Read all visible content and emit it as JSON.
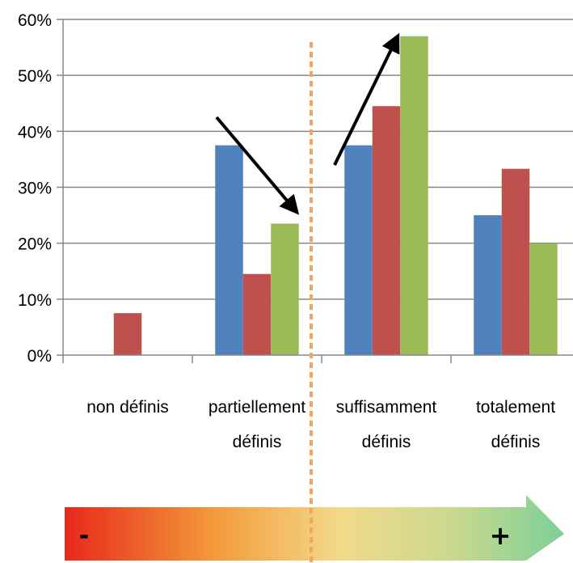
{
  "chart_data": {
    "type": "bar",
    "categories": [
      [
        "non définis"
      ],
      [
        "partiellement",
        "définis"
      ],
      [
        "suffisamment",
        "définis"
      ],
      [
        "totalement",
        "définis"
      ]
    ],
    "series": [
      {
        "color": "#4f81bd",
        "values": [
          0,
          37.5,
          37.5,
          25
        ]
      },
      {
        "color": "#c0504d",
        "values": [
          7.5,
          14.5,
          44.5,
          33.3
        ]
      },
      {
        "color": "#9bbb59",
        "values": [
          0,
          23.5,
          57,
          20
        ]
      }
    ],
    "ylim": [
      0,
      60
    ],
    "yticks": [
      0,
      10,
      20,
      30,
      40,
      50,
      60
    ],
    "ytick_labels": [
      "0%",
      "10%",
      "20%",
      "30%",
      "40%",
      "50%",
      "60%"
    ],
    "grid": true,
    "xlabel": "",
    "ylabel": "",
    "title": ""
  },
  "divider": {
    "color": "#f4a460",
    "style": "dashed"
  },
  "scale_bar": {
    "minus_label": "-",
    "plus_label": "+",
    "colors": [
      "#e8281c",
      "#f39a3a",
      "#f3d98a",
      "#c8d98e",
      "#7dcf97"
    ]
  },
  "colors": {
    "grid": "#878787",
    "axis": "#878787",
    "arrow": "#000000"
  }
}
